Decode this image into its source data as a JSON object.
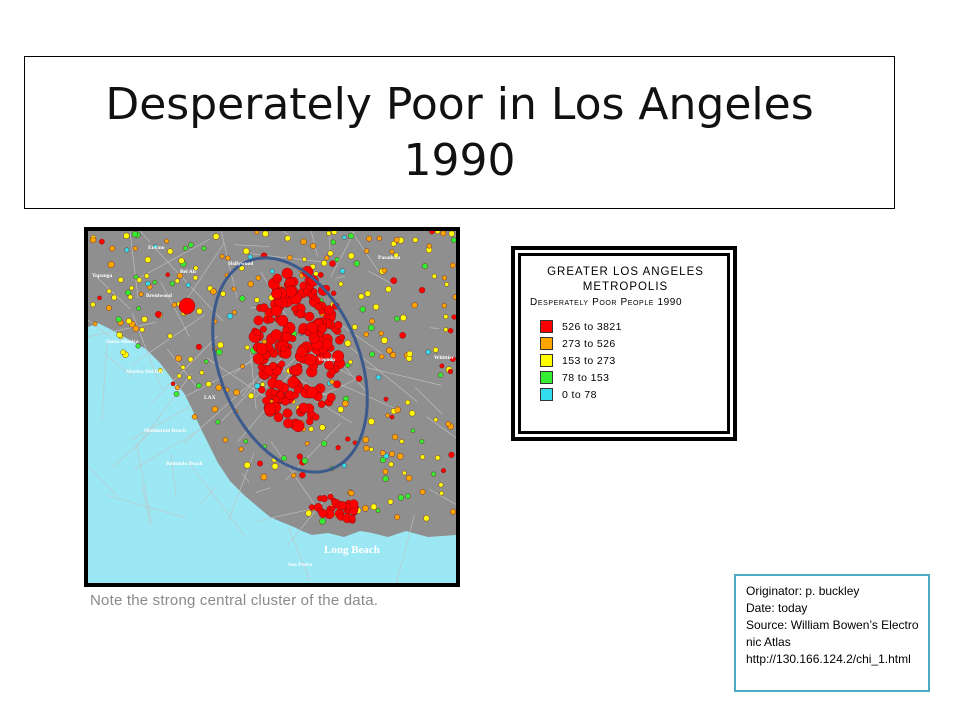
{
  "slide": {
    "title": "Desperately Poor in Los Angeles 1990",
    "caption": "Note the strong central cluster of the data."
  },
  "map": {
    "place_labels": [
      "Encino",
      "Bel Air",
      "Hollywood",
      "Pasadena",
      "Topanga",
      "Brentwood",
      "Santa Monica",
      "Marina Del Rey",
      "Vernon",
      "Whittier",
      "LAX",
      "Manhattan Beach",
      "Redondo Beach",
      "Long Beach",
      "San Pedro"
    ],
    "colors": {
      "ocean": "#9be7f3",
      "land": "#8f8f8f",
      "roads": "#c4c4c4",
      "ring": "#3c5a8c"
    }
  },
  "legend": {
    "title_line1": "GREATER LOS ANGELES",
    "title_line2": "METROPOLIS",
    "subtitle": "Desperately Poor People  1990",
    "items": [
      {
        "label": "526 to 3821",
        "color": "#ff0000"
      },
      {
        "label": "273 to 526",
        "color": "#ffa500"
      },
      {
        "label": "153 to 273",
        "color": "#ffff00"
      },
      {
        "label": "78 to 153",
        "color": "#33ee33"
      },
      {
        "label": "0 to 78",
        "color": "#33ddee"
      }
    ]
  },
  "originator": {
    "lines": [
      "Originator: p. buckley",
      "Date: today",
      "Source: William Bowen’s Electronic Atlas",
      "http://130.166.124.2/chi_1.html"
    ],
    "border_color": "#4bacc6"
  }
}
